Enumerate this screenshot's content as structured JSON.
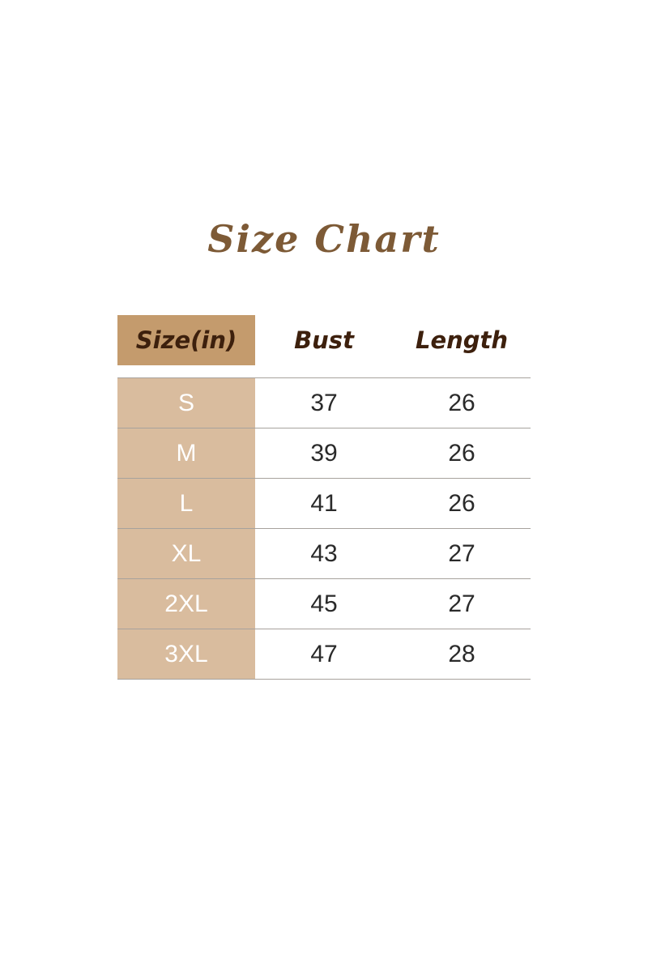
{
  "title": "Size Chart",
  "colors": {
    "title": "#7d5a36",
    "header_fill": "#c49b6d",
    "size_column_fill": "#d9bc9e",
    "header_text": "#3d200d"
  },
  "headers": [
    "Size(in)",
    "Bust",
    "Length"
  ],
  "rows": [
    [
      "S",
      "37",
      "26"
    ],
    [
      "M",
      "39",
      "26"
    ],
    [
      "L",
      "41",
      "26"
    ],
    [
      "XL",
      "43",
      "27"
    ],
    [
      "2XL",
      "45",
      "27"
    ],
    [
      "3XL",
      "47",
      "28"
    ]
  ]
}
